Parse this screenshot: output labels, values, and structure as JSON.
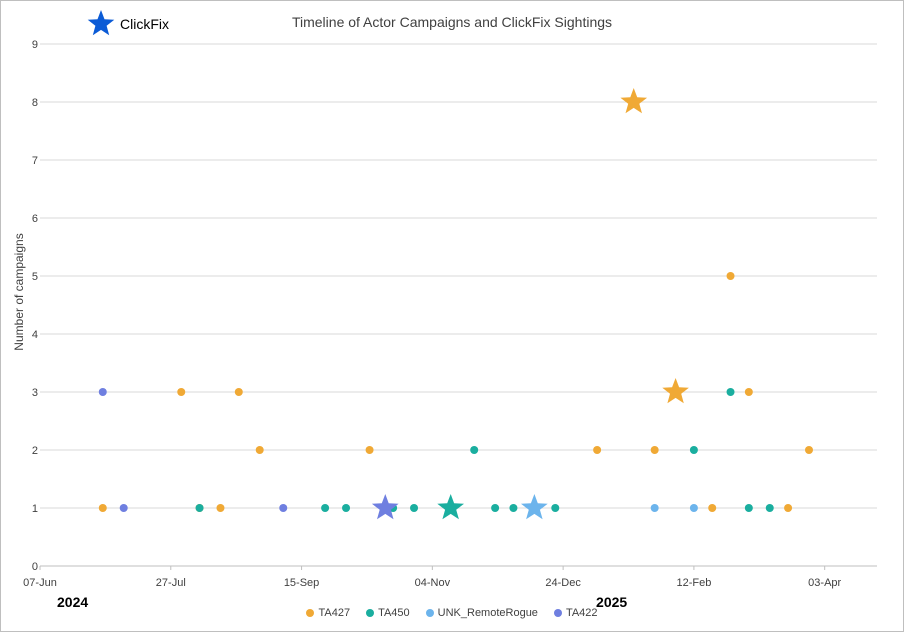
{
  "chart_data": {
    "type": "scatter",
    "title": "Timeline of Actor Campaigns and ClickFix Sightings",
    "ylabel": "Number of campaigns",
    "xlabel": "",
    "ylim": [
      0,
      9
    ],
    "xlim": [
      "2024-06-07",
      "2025-04-23"
    ],
    "y_ticks": [
      "0",
      "1",
      "2",
      "3",
      "4",
      "5",
      "6",
      "7",
      "8",
      "9"
    ],
    "x_ticks": [
      {
        "date": "2024-06-07",
        "label": "07-Jun"
      },
      {
        "date": "2024-07-27",
        "label": "27-Jul"
      },
      {
        "date": "2024-09-15",
        "label": "15-Sep"
      },
      {
        "date": "2024-11-04",
        "label": "04-Nov"
      },
      {
        "date": "2024-12-24",
        "label": "24-Dec"
      },
      {
        "date": "2025-02-12",
        "label": "12-Feb"
      },
      {
        "date": "2025-04-03",
        "label": "03-Apr"
      }
    ],
    "year_labels": [
      {
        "label": "2024",
        "date": "2024-06-07"
      },
      {
        "label": "2025",
        "date": "2025-01-01"
      }
    ],
    "grid": "horizontal",
    "legend_position": "bottom",
    "marker_legend": {
      "label": "ClickFix",
      "color": "#0b5bd6"
    },
    "series": [
      {
        "name": "TA427",
        "color": "#f0a935",
        "points": [
          {
            "x": "2024-07-01",
            "y": 1
          },
          {
            "x": "2024-07-31",
            "y": 3
          },
          {
            "x": "2024-08-07",
            "y": 1
          },
          {
            "x": "2024-08-15",
            "y": 1
          },
          {
            "x": "2024-08-22",
            "y": 3
          },
          {
            "x": "2024-08-30",
            "y": 2
          },
          {
            "x": "2024-10-11",
            "y": 2
          },
          {
            "x": "2025-01-06",
            "y": 2
          },
          {
            "x": "2025-01-20",
            "y": 8,
            "clickfix": true
          },
          {
            "x": "2025-01-28",
            "y": 2
          },
          {
            "x": "2025-02-05",
            "y": 3,
            "clickfix": true
          },
          {
            "x": "2025-02-19",
            "y": 1
          },
          {
            "x": "2025-02-26",
            "y": 5
          },
          {
            "x": "2025-03-05",
            "y": 3
          },
          {
            "x": "2025-03-20",
            "y": 1
          },
          {
            "x": "2025-03-28",
            "y": 2
          }
        ]
      },
      {
        "name": "TA450",
        "color": "#1aae9f",
        "points": [
          {
            "x": "2024-08-07",
            "y": 1
          },
          {
            "x": "2024-09-24",
            "y": 1
          },
          {
            "x": "2024-10-02",
            "y": 1
          },
          {
            "x": "2024-10-20",
            "y": 1
          },
          {
            "x": "2024-10-28",
            "y": 1
          },
          {
            "x": "2024-11-11",
            "y": 1,
            "clickfix": true
          },
          {
            "x": "2024-11-20",
            "y": 2
          },
          {
            "x": "2024-11-28",
            "y": 1
          },
          {
            "x": "2024-12-05",
            "y": 1
          },
          {
            "x": "2024-12-21",
            "y": 1
          },
          {
            "x": "2025-02-12",
            "y": 2
          },
          {
            "x": "2025-02-26",
            "y": 3
          },
          {
            "x": "2025-03-05",
            "y": 1
          },
          {
            "x": "2025-03-13",
            "y": 1
          }
        ]
      },
      {
        "name": "UNK_RemoteRogue",
        "color": "#6cb4ec",
        "points": [
          {
            "x": "2024-12-13",
            "y": 1,
            "clickfix": true
          },
          {
            "x": "2025-01-28",
            "y": 1
          },
          {
            "x": "2025-02-12",
            "y": 1
          }
        ]
      },
      {
        "name": "TA422",
        "color": "#6f7fe0",
        "points": [
          {
            "x": "2024-07-01",
            "y": 3
          },
          {
            "x": "2024-07-09",
            "y": 1
          },
          {
            "x": "2024-09-08",
            "y": 1
          },
          {
            "x": "2024-10-17",
            "y": 1,
            "clickfix": true
          }
        ]
      }
    ]
  }
}
